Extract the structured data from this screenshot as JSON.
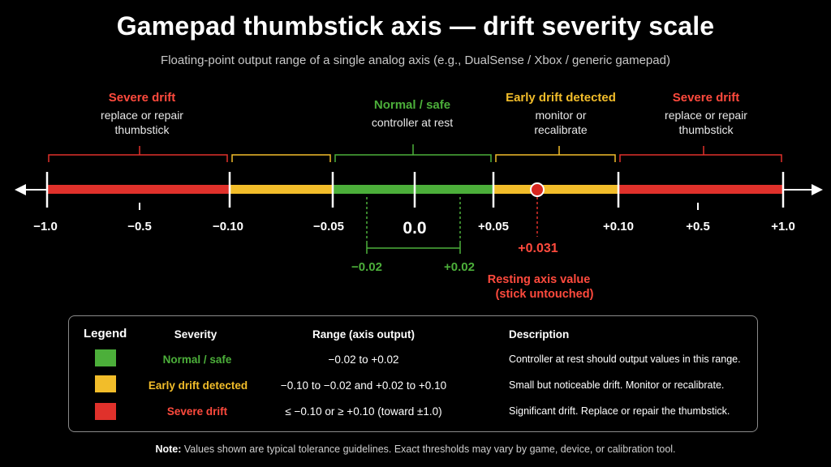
{
  "title": "Gamepad thumbstick axis — drift severity scale",
  "subtitle": "Floating-point output range of a single analog axis (e.g., DualSense / Xbox / generic gamepad)",
  "colors": {
    "green": "#4caf3a",
    "yellow": "#f2bd2a",
    "red": "#e0312b",
    "label_red": "#ff4a3d"
  },
  "zones": {
    "severe_left": {
      "title": "Severe drift",
      "desc1": "replace or repair",
      "desc2": "thumbstick"
    },
    "normal": {
      "title": "Normal / safe",
      "desc1": "controller at rest"
    },
    "early": {
      "title": "Early drift detected",
      "desc1": "monitor or",
      "desc2": "recalibrate"
    },
    "severe_right": {
      "title": "Severe drift",
      "desc1": "replace or repair",
      "desc2": "thumbstick"
    }
  },
  "ticks": {
    "neg1": "−1.0",
    "neg05": "−0.5",
    "neg010": "−0.10",
    "neg005": "−0.05",
    "zero": "0.0",
    "pos005": "+0.05",
    "pos010": "+0.10",
    "pos05": "+0.5",
    "pos1": "+1.0"
  },
  "inner_range": {
    "left": "−0.02",
    "right": "+0.02"
  },
  "resting": {
    "value": "+0.031",
    "label1": "Resting axis value",
    "label2": "(stick untouched)"
  },
  "legend": {
    "heading": "Legend",
    "col_severity": "Severity",
    "col_range": "Range (axis output)",
    "col_description": "Description",
    "rows": [
      {
        "severity": "Normal / safe",
        "range": "−0.02 to +0.02",
        "description": "Controller at rest should output values in this range.",
        "color": "green"
      },
      {
        "severity": "Early drift detected",
        "range": "−0.10 to −0.02 and +0.02 to +0.10",
        "description": "Small but noticeable drift. Monitor or recalibrate.",
        "color": "yellow"
      },
      {
        "severity": "Severe drift",
        "range": "≤  −0.10 or ≥ +0.10 (toward ±1.0)",
        "description": "Significant drift. Replace or repair the thumbstick.",
        "color": "red"
      }
    ]
  },
  "note": {
    "prefix": "Note:",
    "text": "Values shown are typical tolerance guidelines. Exact thresholds may vary by game, device, or calibration tool."
  }
}
